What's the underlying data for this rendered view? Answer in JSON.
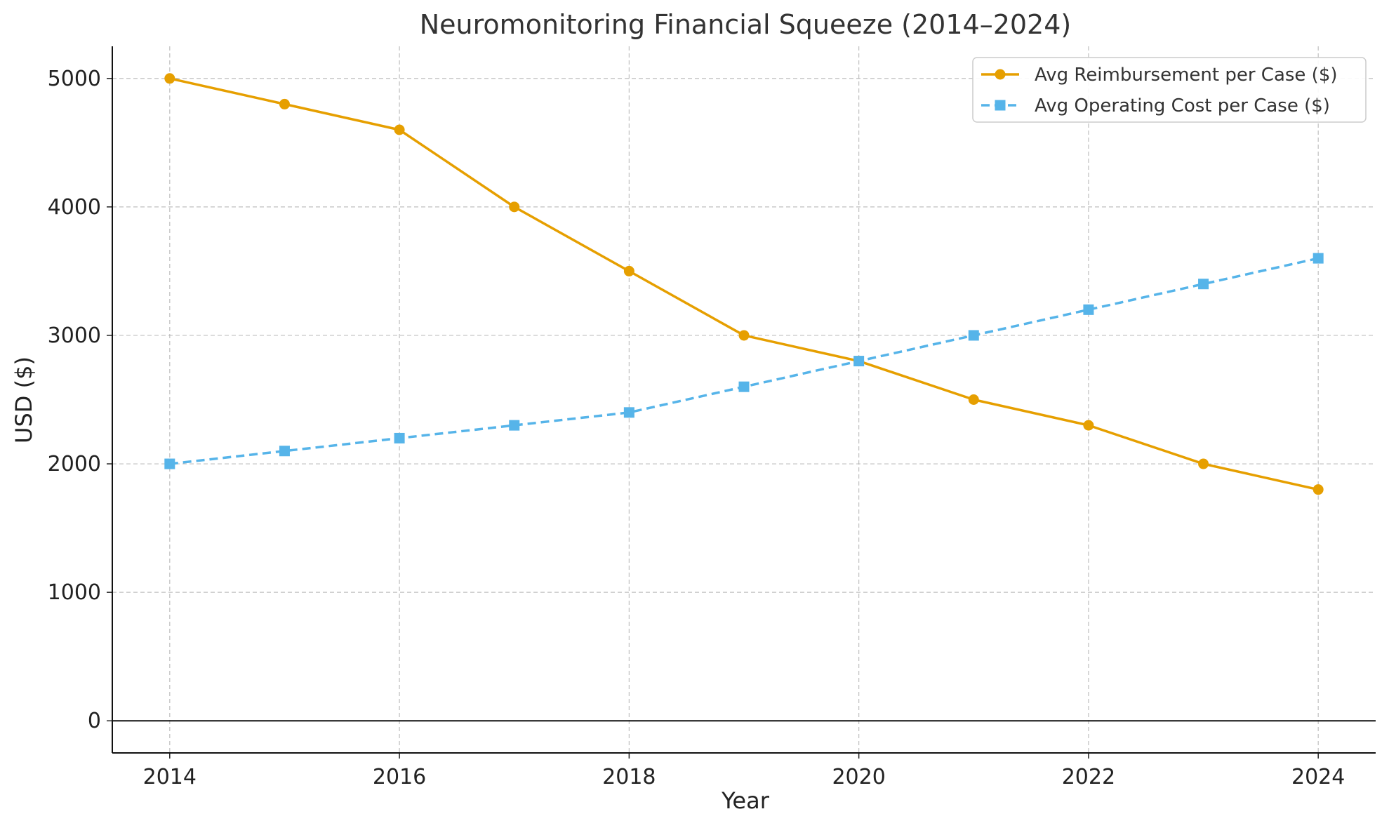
{
  "chart_data": {
    "type": "line",
    "title": "Neuromonitoring Financial Squeeze (2014–2024)",
    "xlabel": "Year",
    "ylabel": "USD ($)",
    "x": [
      2014,
      2015,
      2016,
      2017,
      2018,
      2019,
      2020,
      2021,
      2022,
      2023,
      2024
    ],
    "xlim": [
      2013.5,
      2024.5
    ],
    "ylim": [
      -250,
      5250
    ],
    "xticks": [
      "2014",
      "2016",
      "2018",
      "2020",
      "2022",
      "2024"
    ],
    "yticks": [
      "0",
      "1000",
      "2000",
      "3000",
      "4000",
      "5000"
    ],
    "grid": true,
    "zero_line": true,
    "legend_position": "top-right",
    "series": [
      {
        "name": "Avg Reimbursement per Case ($)",
        "values": [
          5000,
          4800,
          4600,
          4000,
          3500,
          3000,
          2800,
          2500,
          2300,
          2000,
          1800
        ],
        "color": "#E69F00",
        "line_style": "solid",
        "marker": "circle"
      },
      {
        "name": "Avg Operating Cost per Case ($)",
        "values": [
          2000,
          2100,
          2200,
          2300,
          2400,
          2600,
          2800,
          3000,
          3200,
          3400,
          3600
        ],
        "color": "#56B4E9",
        "line_style": "dashed",
        "marker": "square"
      }
    ]
  }
}
